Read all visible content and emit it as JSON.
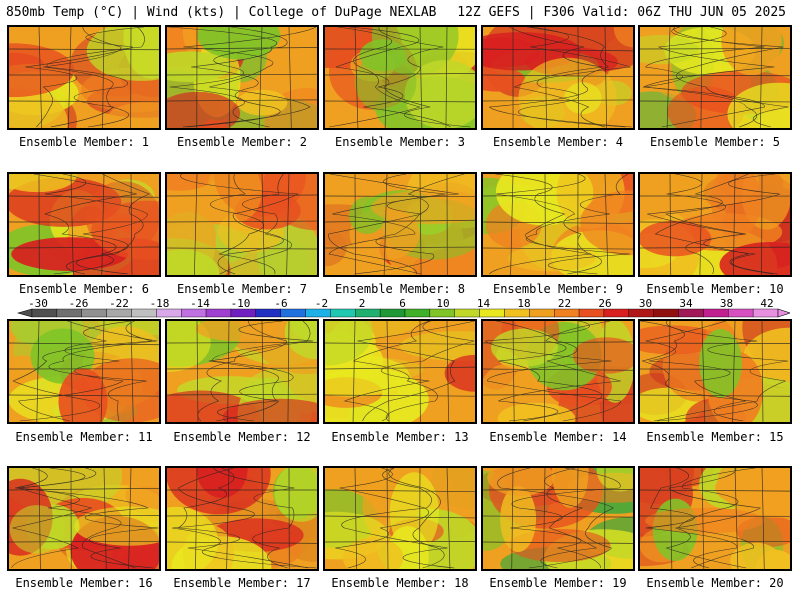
{
  "header": {
    "left": "850mb Temp (°C) | Wind (kts) | College of DuPage NEXLAB",
    "right": "12Z GEFS | F306 Valid: 06Z THU JUN 05 2025"
  },
  "members": [
    {
      "label": "Ensemble Member: 1",
      "tint": "#d23a22"
    },
    {
      "label": "Ensemble Member: 2",
      "tint": "#7cc030"
    },
    {
      "label": "Ensemble Member: 3",
      "tint": "#cf2e1c"
    },
    {
      "label": "Ensemble Member: 4",
      "tint": "#d8461e"
    },
    {
      "label": "Ensemble Member: 5",
      "tint": "#5cb838"
    },
    {
      "label": "Ensemble Member: 6",
      "tint": "#c9d828"
    },
    {
      "label": "Ensemble Member: 7",
      "tint": "#b6d030"
    },
    {
      "label": "Ensemble Member: 8",
      "tint": "#e07820"
    },
    {
      "label": "Ensemble Member: 9",
      "tint": "#d8d020"
    },
    {
      "label": "Ensemble Member: 10",
      "tint": "#cc3020"
    },
    {
      "label": "Ensemble Member: 11",
      "tint": "#a8cc30"
    },
    {
      "label": "Ensemble Member: 12",
      "tint": "#c8d428"
    },
    {
      "label": "Ensemble Member: 13",
      "tint": "#e6c020"
    },
    {
      "label": "Ensemble Member: 14",
      "tint": "#d84420"
    },
    {
      "label": "Ensemble Member: 15",
      "tint": "#cc3420"
    },
    {
      "label": "Ensemble Member: 16",
      "tint": "#e06a1e"
    },
    {
      "label": "Ensemble Member: 17",
      "tint": "#e08a1e"
    },
    {
      "label": "Ensemble Member: 18",
      "tint": "#e6a020"
    },
    {
      "label": "Ensemble Member: 19",
      "tint": "#48a838"
    },
    {
      "label": "Ensemble Member: 20",
      "tint": "#d84020"
    }
  ],
  "colorbar": {
    "ticks": [
      "-30",
      "-26",
      "-22",
      "-18",
      "-14",
      "-10",
      "-6",
      "-2",
      "2",
      "6",
      "10",
      "14",
      "18",
      "22",
      "26",
      "30",
      "34",
      "38",
      "42"
    ],
    "colors": [
      "#505050",
      "#707070",
      "#909090",
      "#a8a8a8",
      "#c0c0c0",
      "#d8a8e8",
      "#c070e0",
      "#a040d0",
      "#7020c0",
      "#2030c0",
      "#2070e0",
      "#20b0e8",
      "#20c8b0",
      "#20b070",
      "#209838",
      "#40b028",
      "#80c428",
      "#c0d828",
      "#e8e820",
      "#f0c020",
      "#f0a020",
      "#f08020",
      "#e85020",
      "#d82020",
      "#b01818",
      "#901010",
      "#a01858",
      "#c02090",
      "#d850c0",
      "#e890e0"
    ]
  }
}
